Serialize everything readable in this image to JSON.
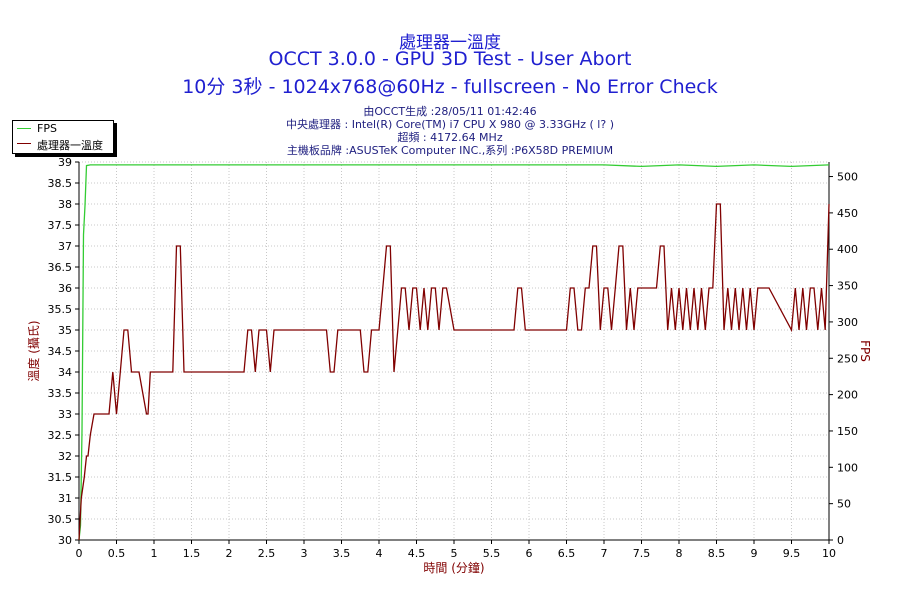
{
  "header": {
    "title_line1": "處理器一溫度",
    "title_line2": "OCCT 3.0.0 - GPU 3D Test - User Abort",
    "title_line3": "10分 3秒 - 1024x768@60Hz - fullscreen - No Error Check",
    "info_line1": "由OCCT生成 :28/05/11 01:42:46",
    "info_line2": "中央處理器 : Intel(R) Core(TM) i7 CPU X 980 @ 3.33GHz (   l? )",
    "info_line3": "超頻 : 4172.64 MHz",
    "info_line4": "主機板品牌 :ASUSTeK Computer INC.,系列 :P6X58D PREMIUM"
  },
  "legend": {
    "items": [
      {
        "label": "FPS",
        "color": "#33cc33"
      },
      {
        "label": "處理器一溫度",
        "color": "#800000"
      }
    ]
  },
  "chart_data": {
    "type": "line",
    "xlabel": "時間 (分鐘)",
    "ylabel_left": "溫度 (攝氏)",
    "ylabel_right": "FPS",
    "xlim": [
      0,
      10
    ],
    "ylim_left": [
      30,
      39
    ],
    "ylim_right": [
      0,
      520
    ],
    "x_ticks": [
      "0",
      "0.5",
      "1",
      "1.5",
      "2",
      "2.5",
      "3",
      "3.5",
      "4",
      "4.5",
      "5",
      "5.5",
      "6",
      "6.5",
      "7",
      "7.5",
      "8",
      "8.5",
      "9",
      "9.5",
      "10"
    ],
    "y_left_ticks": [
      "30",
      "30.5",
      "31",
      "31.5",
      "32",
      "32.5",
      "33",
      "33.5",
      "34",
      "34.5",
      "35",
      "35.5",
      "36",
      "36.5",
      "37",
      "37.5",
      "38",
      "38.5",
      "39"
    ],
    "y_right_ticks": [
      "0",
      "50",
      "100",
      "150",
      "200",
      "250",
      "300",
      "350",
      "400",
      "450",
      "500"
    ],
    "grid": true,
    "series": [
      {
        "name": "FPS",
        "color": "#33cc33",
        "axis": "right",
        "x": [
          0,
          0.02,
          0.04,
          0.06,
          0.08,
          0.1,
          0.15,
          0.3,
          0.6,
          1.0,
          1.5,
          2.0,
          2.5,
          3.0,
          3.5,
          4.0,
          4.5,
          5.0,
          5.5,
          6.0,
          6.5,
          7.0,
          7.5,
          8.0,
          8.5,
          9.0,
          9.5,
          10.0
        ],
        "values": [
          0,
          20,
          150,
          420,
          460,
          515,
          516,
          516,
          516,
          516,
          516,
          516,
          516,
          516,
          516,
          516,
          516,
          516,
          516,
          516,
          516,
          516,
          514,
          516,
          514,
          516,
          514,
          516
        ]
      },
      {
        "name": "處理器一溫度",
        "color": "#800000",
        "axis": "left",
        "x": [
          0,
          0.03,
          0.07,
          0.1,
          0.12,
          0.15,
          0.2,
          0.3,
          0.4,
          0.45,
          0.5,
          0.55,
          0.6,
          0.65,
          0.7,
          0.75,
          0.8,
          0.9,
          0.92,
          0.95,
          1.0,
          1.05,
          1.25,
          1.3,
          1.35,
          1.4,
          2.2,
          2.25,
          2.3,
          2.35,
          2.4,
          2.45,
          2.5,
          2.55,
          2.6,
          2.65,
          2.7,
          2.75,
          2.8,
          2.95,
          3.0,
          3.3,
          3.35,
          3.4,
          3.45,
          3.5,
          3.7,
          3.75,
          3.8,
          3.85,
          3.9,
          4.0,
          4.05,
          4.1,
          4.15,
          4.2,
          4.25,
          4.3,
          4.35,
          4.4,
          4.45,
          4.5,
          4.55,
          4.6,
          4.65,
          4.7,
          4.75,
          4.8,
          4.85,
          4.9,
          5.0,
          5.8,
          5.85,
          5.9,
          5.95,
          6.5,
          6.55,
          6.6,
          6.65,
          6.7,
          6.75,
          6.8,
          6.85,
          6.9,
          6.95,
          7.0,
          7.05,
          7.1,
          7.15,
          7.2,
          7.25,
          7.3,
          7.35,
          7.4,
          7.45,
          7.5,
          7.7,
          7.75,
          7.8,
          7.85,
          7.9,
          7.95,
          8.0,
          8.05,
          8.1,
          8.15,
          8.2,
          8.25,
          8.3,
          8.35,
          8.4,
          8.45,
          8.5,
          8.55,
          8.6,
          8.65,
          8.7,
          8.75,
          8.8,
          8.85,
          8.9,
          8.95,
          9.0,
          9.05,
          9.1,
          9.15,
          9.2,
          9.5,
          9.55,
          9.6,
          9.65,
          9.7,
          9.75,
          9.8,
          9.85,
          9.9,
          9.95,
          10.0
        ],
        "values": [
          30,
          31,
          31.5,
          32,
          32,
          32.5,
          33,
          33,
          33,
          34,
          33,
          34,
          35,
          35,
          34,
          34,
          34,
          33,
          33,
          34,
          34,
          34,
          34,
          37,
          37,
          34,
          34,
          35,
          35,
          34,
          35,
          35,
          35,
          34,
          35,
          35,
          35,
          35,
          35,
          35,
          35,
          35,
          34,
          34,
          35,
          35,
          35,
          35,
          34,
          34,
          35,
          35,
          36,
          37,
          37,
          34,
          35,
          36,
          36,
          35,
          36,
          36,
          35,
          36,
          35,
          36,
          36,
          35,
          36,
          36,
          35,
          35,
          36,
          36,
          35,
          35,
          36,
          36,
          35,
          35,
          36,
          36,
          37,
          37,
          35,
          36,
          36,
          35,
          36,
          37,
          37,
          35,
          36,
          35,
          36,
          36,
          36,
          37,
          37,
          35,
          36,
          35,
          36,
          35,
          36,
          35,
          36,
          35,
          36,
          35,
          36,
          36,
          38,
          38,
          35,
          36,
          35,
          36,
          35,
          36,
          35,
          36,
          35,
          36,
          36,
          36,
          36,
          35,
          36,
          35,
          36,
          35,
          36,
          36,
          35,
          36,
          35,
          38
        ]
      }
    ]
  }
}
